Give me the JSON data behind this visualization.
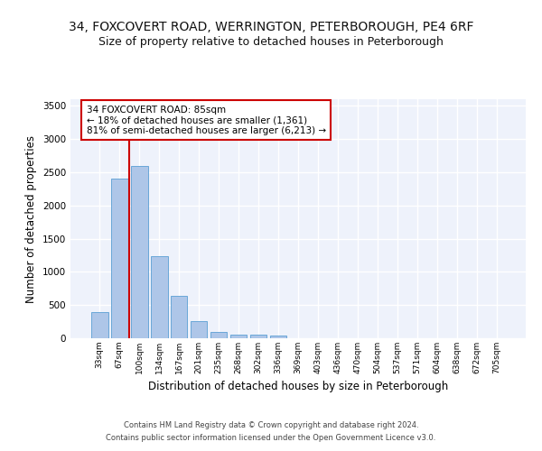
{
  "title_line1": "34, FOXCOVERT ROAD, WERRINGTON, PETERBOROUGH, PE4 6RF",
  "title_line2": "Size of property relative to detached houses in Peterborough",
  "xlabel": "Distribution of detached houses by size in Peterborough",
  "ylabel": "Number of detached properties",
  "footer_line1": "Contains HM Land Registry data © Crown copyright and database right 2024.",
  "footer_line2": "Contains public sector information licensed under the Open Government Licence v3.0.",
  "categories": [
    "33sqm",
    "67sqm",
    "100sqm",
    "134sqm",
    "167sqm",
    "201sqm",
    "235sqm",
    "268sqm",
    "302sqm",
    "336sqm",
    "369sqm",
    "403sqm",
    "436sqm",
    "470sqm",
    "504sqm",
    "537sqm",
    "571sqm",
    "604sqm",
    "638sqm",
    "672sqm",
    "705sqm"
  ],
  "values": [
    390,
    2400,
    2600,
    1240,
    640,
    260,
    95,
    60,
    55,
    40,
    0,
    0,
    0,
    0,
    0,
    0,
    0,
    0,
    0,
    0,
    0
  ],
  "bar_color": "#aec6e8",
  "bar_edge_color": "#5a9fd4",
  "vline_x": 1.5,
  "vline_color": "#cc0000",
  "annotation_title": "34 FOXCOVERT ROAD: 85sqm",
  "annotation_line1": "← 18% of detached houses are smaller (1,361)",
  "annotation_line2": "81% of semi-detached houses are larger (6,213) →",
  "annotation_box_color": "#cc0000",
  "ylim": [
    0,
    3600
  ],
  "yticks": [
    0,
    500,
    1000,
    1500,
    2000,
    2500,
    3000,
    3500
  ],
  "background_color": "#eef2fb",
  "grid_color": "#ffffff",
  "title1_fontsize": 10,
  "title2_fontsize": 9,
  "xlabel_fontsize": 8.5,
  "ylabel_fontsize": 8.5,
  "footer_fontsize": 6.0
}
